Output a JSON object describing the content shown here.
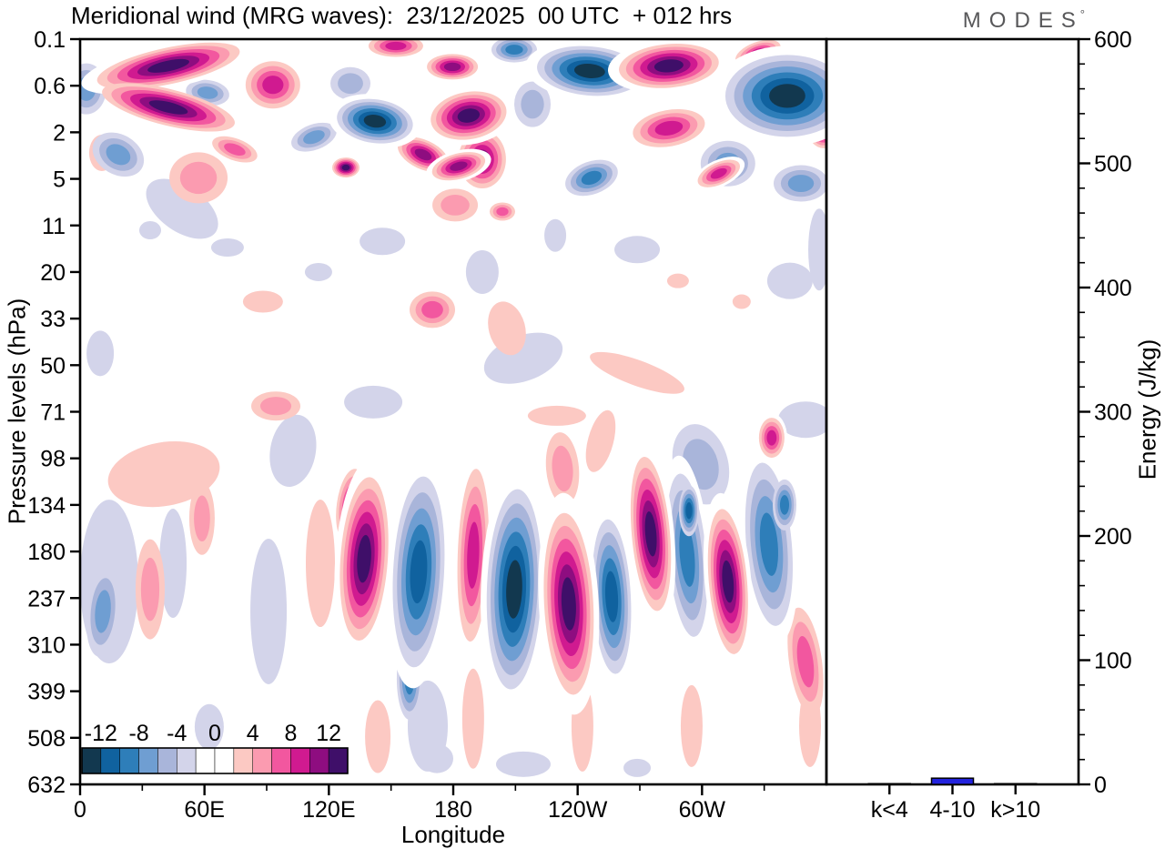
{
  "header": {
    "title": "Meridional wind (MRG waves):  23/12/2025  00 UTC  + 012 hrs",
    "brand": "MODES",
    "brand_mark": "°"
  },
  "chart_data": {
    "type": [
      "filled_contour",
      "bar"
    ],
    "contour": {
      "type": "filled_contour",
      "xlabel": "Longitude",
      "ylabel": "Pressure levels (hPa)",
      "x_range_deg": [
        0,
        360
      ],
      "x_ticks": [
        {
          "lon": 0,
          "label": "0"
        },
        {
          "lon": 60,
          "label": "60E"
        },
        {
          "lon": 120,
          "label": "120E"
        },
        {
          "lon": 180,
          "label": "180"
        },
        {
          "lon": 240,
          "label": "120W"
        },
        {
          "lon": 300,
          "label": "60W"
        }
      ],
      "x_minor_step_deg": 30,
      "y_ticks_hPa": [
        0.1,
        0.6,
        2,
        5,
        11,
        20,
        33,
        50,
        71,
        98,
        134,
        180,
        237,
        310,
        399,
        508,
        632
      ],
      "y_tick_labels": [
        "0.1",
        "0.6",
        "2",
        "5",
        "11",
        "20",
        "33",
        "50",
        "71",
        "98",
        "134",
        "180",
        "237",
        "310",
        "399",
        "508",
        "632"
      ],
      "contour_levels": [
        -14,
        -12,
        -10,
        -8,
        -6,
        -4,
        -2,
        0,
        2,
        4,
        6,
        8,
        10,
        12,
        14
      ],
      "colorbar_labels": [
        "-12",
        "-8",
        "-4",
        "0",
        "4",
        "8",
        "12"
      ],
      "colorbar_label_values": [
        -12,
        -8,
        -4,
        0,
        4,
        8,
        12
      ],
      "palette": [
        "#12384f",
        "#10629f",
        "#2e7eb9",
        "#6f9ed2",
        "#a9b5da",
        "#d3d4ea",
        "#ffffff",
        "#ffffff",
        "#fcc9c3",
        "#fb9bb0",
        "#f2579f",
        "#d01a90",
        "#8e0d80",
        "#3f0f69"
      ],
      "positive_colors": [
        "#fcc9c3",
        "#fb9bb0",
        "#f2579f",
        "#d01a90",
        "#8e0d80",
        "#3f0f69"
      ],
      "negative_colors": [
        "#d3d4ea",
        "#a9b5da",
        "#6f9ed2",
        "#2e7eb9",
        "#10629f",
        "#12384f"
      ],
      "feature_format": [
        "lon_deg",
        "pressure_hPa",
        "amplitude",
        "rx_px",
        "ry_px",
        "tilt_deg",
        "white_halo"
      ],
      "features": [
        [
          42.6,
          0.28,
          14,
          80,
          20,
          -12,
          1
        ],
        [
          42.6,
          1.05,
          14,
          75,
          20,
          14,
          0
        ],
        [
          3,
          0.65,
          -8,
          22,
          28,
          0,
          0
        ],
        [
          61.5,
          0.72,
          -7,
          24,
          14,
          8,
          0
        ],
        [
          93,
          0.58,
          10,
          30,
          26,
          0,
          1
        ],
        [
          74.6,
          2.8,
          7,
          26,
          12,
          20,
          0
        ],
        [
          112.8,
          2.2,
          -8,
          26,
          14,
          -20,
          0
        ],
        [
          142.2,
          1.5,
          -13,
          42,
          24,
          8,
          1
        ],
        [
          179.6,
          0.29,
          12,
          28,
          14,
          0,
          0
        ],
        [
          187.4,
          1.3,
          14,
          42,
          26,
          -10,
          1
        ],
        [
          165.5,
          3.1,
          12,
          30,
          16,
          25,
          0
        ],
        [
          209.4,
          0.15,
          -9,
          25,
          14,
          0,
          0
        ],
        [
          218.2,
          0.97,
          -5,
          20,
          25,
          0,
          0
        ],
        [
          245.8,
          0.34,
          -14,
          58,
          27,
          5,
          1
        ],
        [
          284,
          0.28,
          14,
          55,
          24,
          -5,
          1
        ],
        [
          194,
          3.4,
          12,
          26,
          32,
          0,
          1
        ],
        [
          284,
          1.8,
          9,
          40,
          20,
          -10,
          0
        ],
        [
          327,
          0.17,
          10,
          26,
          12,
          -20,
          1
        ],
        [
          341.1,
          0.78,
          -14,
          68,
          45,
          0,
          1
        ],
        [
          312.5,
          3.7,
          -8,
          30,
          25,
          0,
          0
        ],
        [
          358.7,
          1.8,
          13,
          18,
          22,
          0,
          1
        ],
        [
          152.3,
          0.13,
          9,
          30,
          12,
          0,
          0
        ],
        [
          130.4,
          0.55,
          -6,
          22,
          18,
          0,
          0
        ],
        [
          18.4,
          3.1,
          -7,
          30,
          22,
          30,
          0
        ],
        [
          49.2,
          8.3,
          -4,
          45,
          25,
          35,
          0
        ],
        [
          10.5,
          3,
          4,
          14,
          20,
          0,
          0
        ],
        [
          128.2,
          4,
          13,
          15,
          11,
          0,
          1
        ],
        [
          182.6,
          3.9,
          12,
          30,
          14,
          -15,
          1
        ],
        [
          246.7,
          4.9,
          -9,
          30,
          18,
          -20,
          1
        ],
        [
          308.1,
          4.5,
          10,
          25,
          12,
          -25,
          1
        ],
        [
          347.7,
          5.4,
          -8,
          30,
          20,
          0,
          0
        ],
        [
          57.1,
          4.9,
          6,
          32,
          28,
          0,
          0
        ],
        [
          203.7,
          8.7,
          8,
          14,
          10,
          0,
          0
        ],
        [
          180.9,
          7.8,
          6,
          25,
          18,
          0,
          0
        ],
        [
          145.8,
          13.5,
          -4,
          25,
          15,
          0,
          0
        ],
        [
          115,
          20,
          -3,
          15,
          10,
          0,
          0
        ],
        [
          194,
          20,
          -3,
          18,
          24,
          0,
          0
        ],
        [
          229.2,
          12.5,
          -3,
          12,
          18,
          0,
          0
        ],
        [
          268.7,
          15,
          -3,
          25,
          15,
          0,
          0
        ],
        [
          213.8,
          47,
          -4,
          45,
          25,
          -20,
          0
        ],
        [
          342.4,
          22,
          -3,
          25,
          20,
          0,
          0
        ],
        [
          88.2,
          27.5,
          4,
          22,
          12,
          0,
          0
        ],
        [
          169.9,
          30,
          7,
          25,
          20,
          0,
          0
        ],
        [
          205.9,
          36,
          4,
          20,
          30,
          -15,
          0
        ],
        [
          288.4,
          22,
          4,
          12,
          8,
          0,
          0
        ],
        [
          319.1,
          27.5,
          4,
          10,
          8,
          0,
          0
        ],
        [
          268.7,
          53,
          4,
          55,
          14,
          20,
          0
        ],
        [
          9.7,
          45,
          -3,
          15,
          25,
          0,
          0
        ],
        [
          141.4,
          66,
          -4,
          32,
          18,
          0,
          0
        ],
        [
          94.4,
          68,
          5,
          27,
          16,
          0,
          0
        ],
        [
          349.9,
          75,
          -4,
          30,
          20,
          0,
          0
        ],
        [
          230,
          73,
          4,
          32,
          11,
          0,
          0
        ],
        [
          251.1,
          87,
          4,
          14,
          35,
          15,
          0
        ],
        [
          356.5,
          15,
          -3,
          12,
          45,
          0,
          0
        ],
        [
          333.6,
          85,
          10,
          14,
          22,
          0,
          1
        ],
        [
          33.8,
          11.7,
          -3,
          12,
          10,
          0,
          0
        ],
        [
          71.1,
          14.6,
          -3,
          18,
          10,
          0,
          0
        ],
        [
          40.4,
          109,
          4,
          62,
          35,
          -10,
          0
        ],
        [
          58.8,
          146,
          6,
          14,
          40,
          0,
          0
        ],
        [
          44.8,
          193,
          -4,
          15,
          60,
          0,
          0
        ],
        [
          11,
          256,
          -7,
          18,
          50,
          5,
          0
        ],
        [
          14,
          215,
          -4,
          32,
          90,
          0,
          0
        ],
        [
          33.8,
          225,
          6,
          16,
          55,
          0,
          0
        ],
        [
          90.9,
          256,
          -4,
          20,
          80,
          0,
          0
        ],
        [
          102.7,
          93,
          -4,
          25,
          40,
          10,
          0
        ],
        [
          115.9,
          193,
          4,
          16,
          70,
          0,
          0
        ],
        [
          137,
          188,
          13,
          26,
          90,
          4,
          1
        ],
        [
          130.4,
          134,
          9,
          15,
          40,
          8,
          0
        ],
        [
          163.3,
          203,
          -11,
          28,
          105,
          3,
          1
        ],
        [
          158.9,
          373,
          -9,
          14,
          45,
          0,
          0
        ],
        [
          189.6,
          184,
          9,
          17,
          95,
          2,
          1
        ],
        [
          209.4,
          225,
          -14,
          30,
          110,
          2,
          1
        ],
        [
          232.7,
          105,
          6,
          18,
          40,
          -5,
          0
        ],
        [
          235.7,
          245,
          14,
          27,
          100,
          -3,
          1
        ],
        [
          256.4,
          235,
          -11,
          21,
          85,
          -3,
          1
        ],
        [
          275.3,
          161,
          13,
          21,
          85,
          -5,
          1
        ],
        [
          292.8,
          184,
          -10,
          21,
          90,
          -5,
          1
        ],
        [
          293.7,
          139,
          -12,
          11,
          28,
          0,
          0
        ],
        [
          299.4,
          102,
          -5,
          30,
          45,
          -15,
          0
        ],
        [
          312.5,
          215,
          14,
          21,
          80,
          -5,
          1
        ],
        [
          332.3,
          172,
          -9,
          25,
          90,
          -5,
          1
        ],
        [
          339.8,
          134,
          -10,
          13,
          28,
          0,
          0
        ],
        [
          349.9,
          340,
          7,
          18,
          60,
          -8,
          0
        ],
        [
          189.6,
          460,
          4,
          12,
          55,
          0,
          0
        ],
        [
          242.3,
          478,
          4,
          12,
          50,
          0,
          0
        ],
        [
          295,
          478,
          4,
          12,
          45,
          0,
          0
        ],
        [
          167.7,
          478,
          -4,
          22,
          50,
          0,
          0
        ],
        [
          213.8,
          575,
          -3,
          30,
          14,
          0,
          0
        ],
        [
          172.1,
          560,
          -3,
          18,
          16,
          0,
          0
        ],
        [
          268.7,
          585,
          -3,
          15,
          10,
          0,
          0
        ],
        [
          143.6,
          505,
          4,
          14,
          40,
          0,
          0
        ],
        [
          62.3,
          480,
          -3,
          16,
          25,
          0,
          0
        ],
        [
          352.1,
          478,
          4,
          12,
          45,
          0,
          0
        ]
      ]
    },
    "energy": {
      "type": "bar",
      "ylabel": "Energy (J/kg)",
      "ylim": [
        0,
        600
      ],
      "y_major_step": 100,
      "y_minor_step": 20,
      "y_tick_labels": [
        "600",
        "500",
        "400",
        "300",
        "200",
        "100",
        "0"
      ],
      "categories": [
        "k<4",
        "4-10",
        "k>10"
      ],
      "values": [
        0.5,
        5,
        0.5
      ],
      "bar_color": "#2222dd"
    }
  }
}
